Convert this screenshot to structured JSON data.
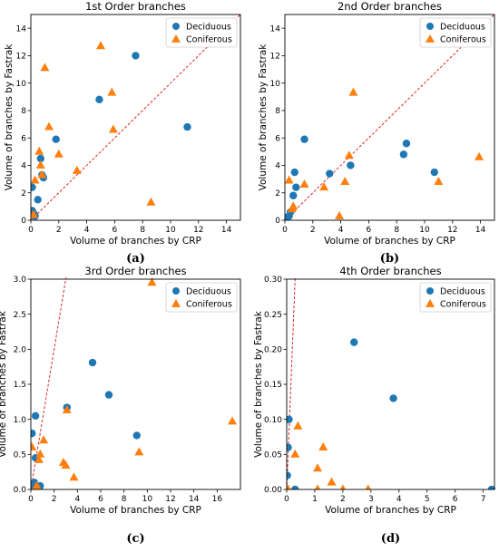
{
  "colors": {
    "deciduous": "#1f77b4",
    "coniferous": "#ff7f0e",
    "reference_line": "#d62728"
  },
  "chart_data": [
    {
      "type": "scatter",
      "title": "1st Order branches",
      "caption": "(a)",
      "xlabel": "Volume of branches by CRP",
      "ylabel": "Volume of branches by Fastrak",
      "xlim": [
        0,
        15
      ],
      "ylim": [
        0,
        15
      ],
      "xticks": [
        0,
        2,
        4,
        6,
        8,
        10,
        12,
        14
      ],
      "yticks": [
        0,
        2,
        4,
        6,
        8,
        10,
        12,
        14
      ],
      "tick_labels_x": [
        "0",
        "2",
        "4",
        "6",
        "8",
        "10",
        "12",
        "14"
      ],
      "tick_labels_y": [
        "0",
        "2",
        "4",
        "6",
        "8",
        "10",
        "12",
        "14"
      ],
      "reference_line": "1:1",
      "legend_position": "top-right",
      "series": [
        {
          "name": "Deciduous",
          "marker": "circle",
          "points": [
            [
              0.1,
              2.4
            ],
            [
              0.1,
              0.7
            ],
            [
              0.2,
              0.5
            ],
            [
              0.3,
              0.3
            ],
            [
              0.5,
              1.5
            ],
            [
              0.7,
              4.5
            ],
            [
              0.8,
              3.3
            ],
            [
              0.9,
              3.1
            ],
            [
              1.8,
              5.9
            ],
            [
              4.9,
              8.8
            ],
            [
              7.5,
              12.0
            ],
            [
              11.2,
              6.8
            ]
          ]
        },
        {
          "name": "Coniferous",
          "marker": "triangle",
          "points": [
            [
              0.2,
              0.4
            ],
            [
              0.3,
              2.9
            ],
            [
              0.6,
              5.0
            ],
            [
              0.7,
              4.0
            ],
            [
              0.8,
              3.3
            ],
            [
              1.0,
              11.1
            ],
            [
              1.3,
              6.8
            ],
            [
              2.0,
              4.8
            ],
            [
              3.3,
              3.6
            ],
            [
              5.0,
              12.7
            ],
            [
              5.8,
              9.3
            ],
            [
              5.9,
              6.6
            ],
            [
              8.6,
              1.3
            ]
          ]
        }
      ]
    },
    {
      "type": "scatter",
      "title": "2nd Order branches",
      "caption": "(b)",
      "xlabel": "Volume of branches by CRP",
      "ylabel": "Volume of branches by Fastrak",
      "xlim": [
        0,
        15
      ],
      "ylim": [
        0,
        15
      ],
      "xticks": [
        0,
        2,
        4,
        6,
        8,
        10,
        12,
        14
      ],
      "yticks": [
        0,
        2,
        4,
        6,
        8,
        10,
        12,
        14
      ],
      "tick_labels_x": [
        "0",
        "2",
        "4",
        "6",
        "8",
        "10",
        "12",
        "14"
      ],
      "tick_labels_y": [
        "0",
        "2",
        "4",
        "6",
        "8",
        "10",
        "12",
        "14"
      ],
      "reference_line": "1:1",
      "legend_position": "top-right",
      "series": [
        {
          "name": "Deciduous",
          "marker": "circle",
          "points": [
            [
              0.1,
              0.2
            ],
            [
              0.3,
              0.3
            ],
            [
              0.4,
              0.6
            ],
            [
              0.6,
              1.8
            ],
            [
              0.7,
              3.5
            ],
            [
              0.8,
              2.4
            ],
            [
              1.4,
              5.9
            ],
            [
              3.2,
              3.4
            ],
            [
              4.7,
              4.0
            ],
            [
              8.5,
              4.8
            ],
            [
              8.7,
              5.6
            ],
            [
              10.7,
              3.5
            ]
          ]
        },
        {
          "name": "Coniferous",
          "marker": "triangle",
          "points": [
            [
              0.3,
              2.9
            ],
            [
              0.5,
              0.8
            ],
            [
              0.6,
              1.0
            ],
            [
              1.4,
              2.6
            ],
            [
              2.8,
              2.4
            ],
            [
              3.9,
              0.3
            ],
            [
              4.3,
              2.8
            ],
            [
              4.6,
              4.7
            ],
            [
              4.9,
              9.3
            ],
            [
              11.0,
              2.8
            ],
            [
              13.9,
              4.6
            ]
          ]
        }
      ]
    },
    {
      "type": "scatter",
      "title": "3rd Order branches",
      "caption": "(c)",
      "xlabel": "Volume of branches by CRP",
      "ylabel": "Volume of branches by Fastrak",
      "xlim": [
        0,
        18
      ],
      "ylim": [
        0,
        3.0
      ],
      "xticks": [
        0,
        2,
        4,
        6,
        8,
        10,
        12,
        14,
        16
      ],
      "yticks": [
        0,
        0.5,
        1.0,
        1.5,
        2.0,
        2.5,
        3.0
      ],
      "tick_labels_x": [
        "0",
        "2",
        "4",
        "6",
        "8",
        "10",
        "12",
        "14",
        "16"
      ],
      "tick_labels_y": [
        "0.0",
        "0.5",
        "1.0",
        "1.5",
        "2.0",
        "2.5",
        "3.0"
      ],
      "reference_line": "1:1",
      "legend_position": "top-right",
      "series": [
        {
          "name": "Deciduous",
          "marker": "circle",
          "points": [
            [
              0.1,
              0.8
            ],
            [
              0.1,
              0.05
            ],
            [
              0.2,
              0.02
            ],
            [
              0.3,
              0.1
            ],
            [
              0.4,
              0.45
            ],
            [
              0.4,
              1.05
            ],
            [
              0.8,
              0.05
            ],
            [
              3.1,
              1.17
            ],
            [
              5.3,
              1.81
            ],
            [
              6.7,
              1.35
            ],
            [
              9.1,
              0.77
            ]
          ]
        },
        {
          "name": "Coniferous",
          "marker": "triangle",
          "points": [
            [
              0.1,
              0.6
            ],
            [
              0.5,
              0.05
            ],
            [
              0.7,
              0.42
            ],
            [
              0.8,
              0.5
            ],
            [
              1.1,
              0.7
            ],
            [
              2.8,
              0.38
            ],
            [
              3.0,
              0.34
            ],
            [
              3.1,
              1.13
            ],
            [
              3.7,
              0.17
            ],
            [
              9.3,
              0.53
            ],
            [
              10.4,
              2.95
            ],
            [
              17.3,
              0.97
            ]
          ]
        }
      ]
    },
    {
      "type": "scatter",
      "title": "4th Order branches",
      "caption": "(d)",
      "xlabel": "Volume of branches by CRP",
      "ylabel": "Volume of branches by Fastrak",
      "xlim": [
        0,
        7.4
      ],
      "ylim": [
        0,
        0.3
      ],
      "xticks": [
        0,
        1,
        2,
        3,
        4,
        5,
        6,
        7
      ],
      "yticks": [
        0,
        0.05,
        0.1,
        0.15,
        0.2,
        0.25,
        0.3
      ],
      "tick_labels_x": [
        "0",
        "1",
        "2",
        "3",
        "4",
        "5",
        "6",
        "7"
      ],
      "tick_labels_y": [
        "0.00",
        "0.05",
        "0.10",
        "0.15",
        "0.20",
        "0.25",
        "0.30"
      ],
      "reference_line": "1:1",
      "legend_position": "top-right",
      "series": [
        {
          "name": "Deciduous",
          "marker": "circle",
          "points": [
            [
              0.02,
              0.02
            ],
            [
              0.05,
              0.06
            ],
            [
              0.08,
              0.1
            ],
            [
              0.3,
              0.0
            ],
            [
              2.4,
              0.21
            ],
            [
              3.8,
              0.13
            ],
            [
              7.3,
              0.0
            ]
          ]
        },
        {
          "name": "Coniferous",
          "marker": "triangle",
          "points": [
            [
              0.05,
              0.0
            ],
            [
              0.3,
              0.05
            ],
            [
              0.4,
              0.09
            ],
            [
              1.1,
              0.03
            ],
            [
              1.3,
              0.06
            ],
            [
              1.6,
              0.01
            ],
            [
              1.1,
              0.0
            ],
            [
              2.0,
              0.0
            ],
            [
              2.9,
              0.0
            ]
          ]
        }
      ]
    }
  ]
}
